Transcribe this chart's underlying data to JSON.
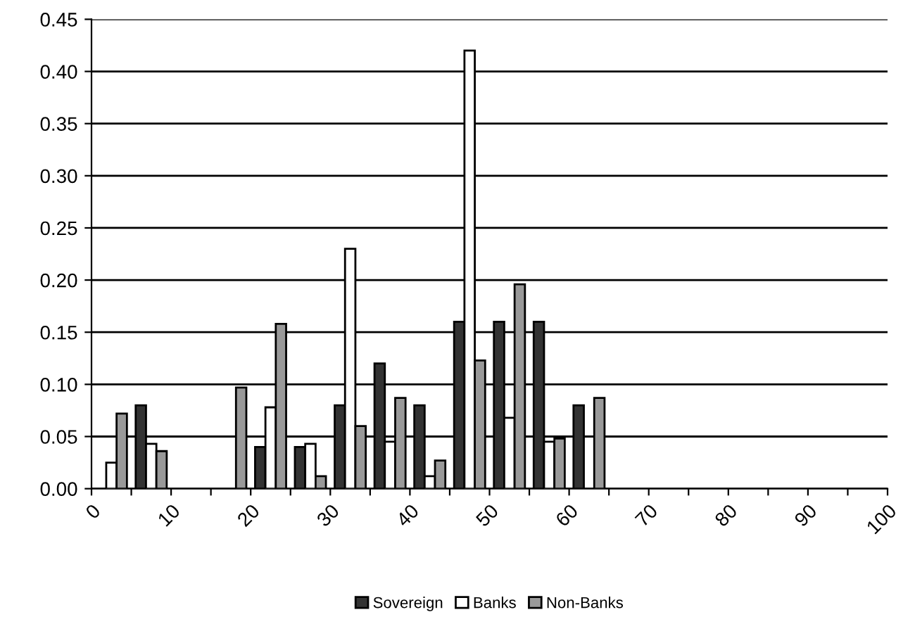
{
  "chart_data": {
    "type": "bar",
    "x": [
      2.5,
      7.5,
      12.5,
      17.5,
      22.5,
      27.5,
      32.5,
      37.5,
      42.5,
      47.5,
      52.5,
      57.5,
      62.5
    ],
    "series": [
      {
        "name": "Sovereign",
        "color": "#333333",
        "values": [
          null,
          0.08,
          null,
          null,
          0.04,
          0.04,
          0.08,
          0.12,
          0.08,
          0.16,
          0.16,
          0.16,
          0.08
        ]
      },
      {
        "name": "Banks",
        "color": "#ffffff",
        "values": [
          0.025,
          0.043,
          null,
          null,
          0.078,
          0.043,
          0.23,
          0.045,
          0.012,
          0.42,
          0.068,
          0.045,
          null
        ]
      },
      {
        "name": "Non-Banks",
        "color": "#999999",
        "values": [
          0.072,
          0.036,
          null,
          0.097,
          0.158,
          0.012,
          0.06,
          0.087,
          0.027,
          0.123,
          0.196,
          0.048,
          0.087
        ]
      }
    ],
    "xlim": [
      0,
      100
    ],
    "xticks": [
      0,
      {
        "value": 5,
        "label": null
      },
      10,
      {
        "value": 15,
        "label": null
      },
      20,
      {
        "value": 25,
        "label": null
      },
      30,
      {
        "value": 35,
        "label": null
      },
      40,
      {
        "value": 45,
        "label": null
      },
      50,
      {
        "value": 55,
        "label": null
      },
      60,
      {
        "value": 65,
        "label": null
      },
      70,
      {
        "value": 75,
        "label": null
      },
      80,
      {
        "value": 85,
        "label": null
      },
      90,
      {
        "value": 95,
        "label": null
      },
      100
    ],
    "ylim": [
      0,
      0.45
    ],
    "yticks": [
      {
        "value": 0,
        "label": "0.00"
      },
      {
        "value": 0.05,
        "label": "0.05"
      },
      {
        "value": 0.1,
        "label": "0.10"
      },
      {
        "value": 0.15,
        "label": "0.15"
      },
      {
        "value": 0.2,
        "label": "0.20"
      },
      {
        "value": 0.25,
        "label": "0.25"
      },
      {
        "value": 0.3,
        "label": "0.30"
      },
      {
        "value": 0.35,
        "label": "0.35"
      },
      {
        "value": 0.4,
        "label": "0.40"
      },
      {
        "value": 0.45,
        "label": "0.45"
      }
    ],
    "grid": "y",
    "legend": "bottom"
  }
}
